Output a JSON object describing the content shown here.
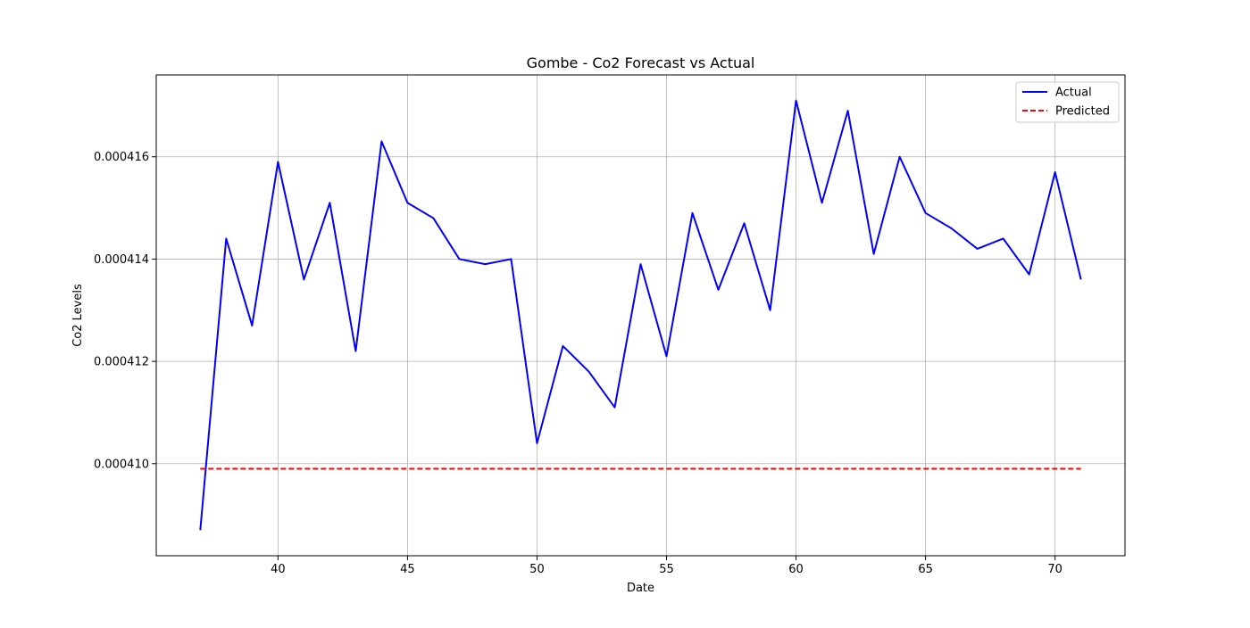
{
  "chart_data": {
    "type": "line",
    "title": "Gombe - Co2 Forecast vs Actual",
    "xlabel": "Date",
    "ylabel": "Co2 Levels",
    "xlim": [
      35.3,
      72.7
    ],
    "ylim": [
      0.0004082,
      0.0004176
    ],
    "x_ticks": [
      40,
      45,
      50,
      55,
      60,
      65,
      70
    ],
    "y_ticks": [
      0.00041,
      0.000412,
      0.000414,
      0.000416
    ],
    "y_tick_labels": [
      "0.000410",
      "0.000412",
      "0.000414",
      "0.000416"
    ],
    "grid": true,
    "legend_position": "top-right",
    "x": [
      37,
      38,
      39,
      40,
      41,
      42,
      43,
      44,
      45,
      46,
      47,
      48,
      49,
      50,
      51,
      52,
      53,
      54,
      55,
      56,
      57,
      58,
      59,
      60,
      61,
      62,
      63,
      64,
      65,
      66,
      67,
      68,
      69,
      70,
      71
    ],
    "series": [
      {
        "name": "Actual",
        "color": "#0000ff",
        "style": "solid",
        "values": [
          0.0004087,
          0.0004144,
          0.0004127,
          0.0004159,
          0.0004136,
          0.0004151,
          0.0004122,
          0.0004163,
          0.0004151,
          0.0004148,
          0.000414,
          0.0004139,
          0.000414,
          0.0004104,
          0.0004123,
          0.0004118,
          0.0004111,
          0.0004139,
          0.0004121,
          0.0004149,
          0.0004134,
          0.0004147,
          0.000413,
          0.0004171,
          0.0004151,
          0.0004169,
          0.0004141,
          0.000416,
          0.0004149,
          0.0004146,
          0.0004142,
          0.0004144,
          0.0004137,
          0.0004157,
          0.0004136
        ]
      },
      {
        "name": "Predicted",
        "color": "#ff0000",
        "style": "dashed",
        "values": [
          0.0004099,
          0.0004099,
          0.0004099,
          0.0004099,
          0.0004099,
          0.0004099,
          0.0004099,
          0.0004099,
          0.0004099,
          0.0004099,
          0.0004099,
          0.0004099,
          0.0004099,
          0.0004099,
          0.0004099,
          0.0004099,
          0.0004099,
          0.0004099,
          0.0004099,
          0.0004099,
          0.0004099,
          0.0004099,
          0.0004099,
          0.0004099,
          0.0004099,
          0.0004099,
          0.0004099,
          0.0004099,
          0.0004099,
          0.0004099,
          0.0004099,
          0.0004099,
          0.0004099,
          0.0004099,
          0.0004099
        ]
      }
    ]
  }
}
